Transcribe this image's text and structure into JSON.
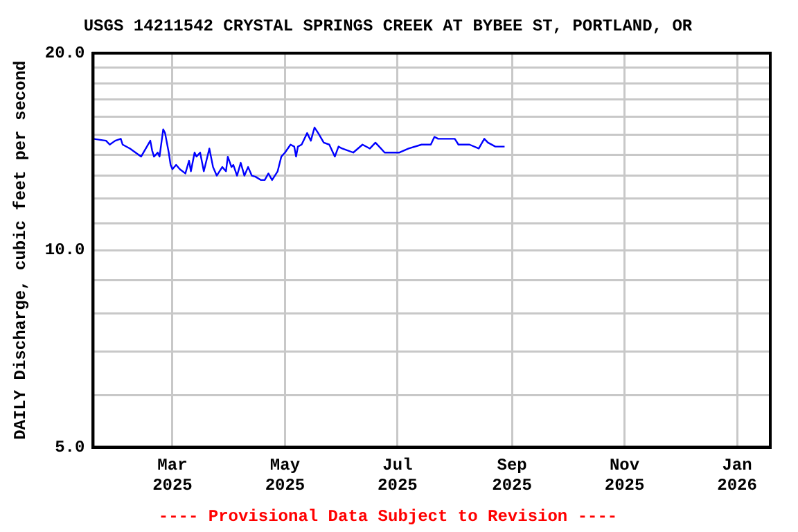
{
  "chart_data": {
    "type": "line",
    "title": "USGS 14211542 CRYSTAL SPRINGS CREEK AT BYBEE ST, PORTLAND, OR",
    "ylabel": "DAILY Discharge, cubic feet per second",
    "annotations": [
      "---- Provisional Data Subject to Revision ----"
    ],
    "x": [
      "2025-01-17",
      "2025-01-24",
      "2025-01-26",
      "2025-01-29",
      "2025-02-01",
      "2025-02-02",
      "2025-02-06",
      "2025-02-12",
      "2025-02-17",
      "2025-02-18",
      "2025-02-19",
      "2025-02-21",
      "2025-02-22",
      "2025-02-24",
      "2025-02-25",
      "2025-02-27",
      "2025-02-28",
      "2025-03-01",
      "2025-03-03",
      "2025-03-05",
      "2025-03-08",
      "2025-03-10",
      "2025-03-11",
      "2025-03-13",
      "2025-03-14",
      "2025-03-16",
      "2025-03-18",
      "2025-03-21",
      "2025-03-23",
      "2025-03-25",
      "2025-03-28",
      "2025-03-30",
      "2025-03-31",
      "2025-04-02",
      "2025-04-03",
      "2025-04-05",
      "2025-04-07",
      "2025-04-09",
      "2025-04-11",
      "2025-04-13",
      "2025-04-15",
      "2025-04-18",
      "2025-04-20",
      "2025-04-22",
      "2025-04-24",
      "2025-04-27",
      "2025-04-29",
      "2025-05-01",
      "2025-05-04",
      "2025-05-06",
      "2025-05-07",
      "2025-05-08",
      "2025-05-10",
      "2025-05-13",
      "2025-05-15",
      "2025-05-17",
      "2025-05-19",
      "2025-05-22",
      "2025-05-25",
      "2025-05-28",
      "2025-05-30",
      "2025-06-01",
      "2025-06-07",
      "2025-06-12",
      "2025-06-16",
      "2025-06-19",
      "2025-06-22",
      "2025-06-24",
      "2025-07-02",
      "2025-07-07",
      "2025-07-14",
      "2025-07-19",
      "2025-07-21",
      "2025-07-23",
      "2025-08-01",
      "2025-08-03",
      "2025-08-09",
      "2025-08-14",
      "2025-08-17",
      "2025-08-19",
      "2025-08-23",
      "2025-08-28"
    ],
    "series": [
      {
        "color": "#0000ff",
        "values": [
          14.8,
          14.7,
          14.5,
          14.7,
          14.8,
          14.5,
          14.3,
          13.9,
          14.7,
          14.2,
          13.9,
          14.1,
          13.9,
          15.3,
          15.1,
          14.1,
          13.5,
          13.3,
          13.5,
          13.3,
          13.1,
          13.7,
          13.2,
          14.1,
          13.9,
          14.1,
          13.2,
          14.3,
          13.4,
          13.0,
          13.4,
          13.2,
          13.9,
          13.4,
          13.5,
          13.0,
          13.6,
          13.0,
          13.4,
          13.0,
          12.95,
          12.8,
          12.8,
          13.1,
          12.8,
          13.2,
          13.9,
          14.1,
          14.5,
          14.4,
          13.9,
          14.4,
          14.5,
          15.1,
          14.7,
          15.4,
          15.1,
          14.6,
          14.5,
          13.9,
          14.4,
          14.3,
          14.1,
          14.5,
          14.3,
          14.6,
          14.3,
          14.1,
          14.1,
          14.3,
          14.5,
          14.5,
          14.9,
          14.8,
          14.8,
          14.5,
          14.5,
          14.3,
          14.8,
          14.6,
          14.4,
          14.4
        ]
      }
    ],
    "xlim": [
      "2025-01-17",
      "2026-01-19"
    ],
    "xticks": [
      {
        "value": "2025-03-01",
        "label": "Mar 2025"
      },
      {
        "value": "2025-05-01",
        "label": "May 2025"
      },
      {
        "value": "2025-07-01",
        "label": "Jul 2025"
      },
      {
        "value": "2025-09-01",
        "label": "Sep 2025"
      },
      {
        "value": "2025-11-01",
        "label": "Nov 2025"
      },
      {
        "value": "2026-01-01",
        "label": "Jan 2026"
      }
    ],
    "ylim": [
      5,
      20
    ],
    "log": true,
    "yticks": [
      {
        "value": 5,
        "label": "5.0"
      },
      {
        "value": 6,
        "label": null
      },
      {
        "value": 7,
        "label": null
      },
      {
        "value": 8,
        "label": null
      },
      {
        "value": 9,
        "label": null
      },
      {
        "value": 10,
        "label": "10.0"
      },
      {
        "value": 11,
        "label": null
      },
      {
        "value": 12,
        "label": null
      },
      {
        "value": 13,
        "label": null
      },
      {
        "value": 14,
        "label": null
      },
      {
        "value": 15,
        "label": null
      },
      {
        "value": 16,
        "label": null
      },
      {
        "value": 17,
        "label": null
      },
      {
        "value": 18,
        "label": null
      },
      {
        "value": 19,
        "label": null
      },
      {
        "value": 20,
        "label": "20.0"
      }
    ],
    "grid": true,
    "legend": false,
    "marker": "none",
    "line_style": "solid"
  }
}
